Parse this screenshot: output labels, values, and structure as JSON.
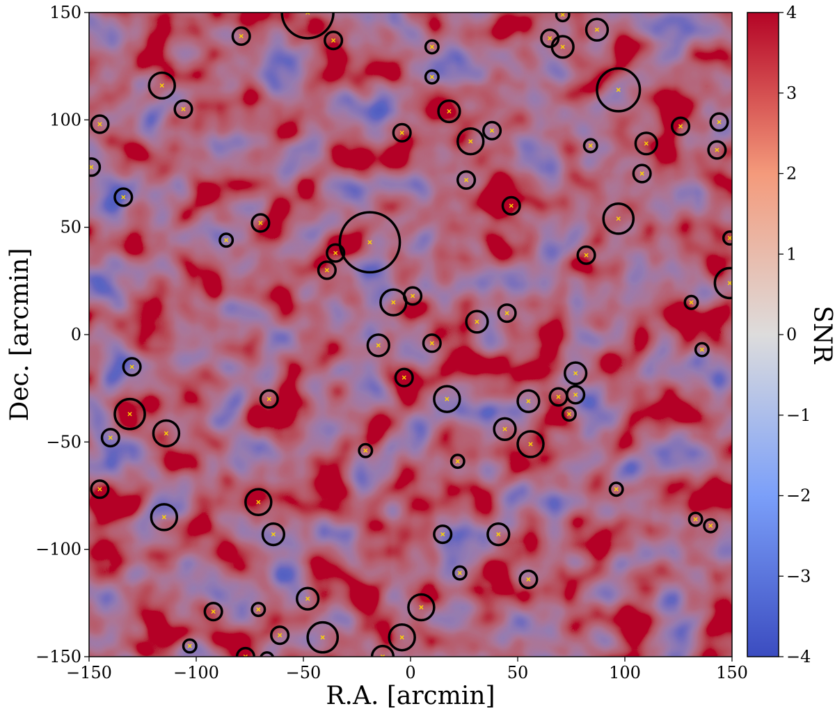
{
  "chart_data": {
    "type": "heatmap",
    "title": "",
    "xlabel": "R.A.  [arcmin]",
    "ylabel": "Dec.  [arcmin]",
    "xlim": [
      -150,
      150
    ],
    "ylim": [
      -150,
      150
    ],
    "x_ticks": [
      -150,
      -100,
      -50,
      0,
      50,
      100,
      150
    ],
    "y_ticks": [
      -150,
      -100,
      -50,
      0,
      50,
      100,
      150
    ],
    "x_tick_labels": [
      "−150",
      "−100",
      "−50",
      "0",
      "50",
      "100",
      "150"
    ],
    "y_tick_labels": [
      "−150",
      "−100",
      "−50",
      "0",
      "50",
      "100",
      "150"
    ],
    "colorbar": {
      "label": "SNR",
      "range": [
        -4,
        4
      ],
      "ticks": [
        -4,
        -3,
        -2,
        -1,
        0,
        1,
        2,
        3,
        4
      ],
      "tick_labels": [
        "−4",
        "−3",
        "−2",
        "−1",
        "0",
        "1",
        "2",
        "3",
        "4"
      ],
      "colormap": "coolwarm",
      "colors": [
        "#3b4cc0",
        "#7b9ff9",
        "#dddcdc",
        "#f49a7b",
        "#b40426"
      ]
    },
    "grid": false,
    "marker_color": "#ffd700",
    "circle_color": "#000000",
    "sources": [
      {
        "x": -48,
        "y": 150,
        "r": 12
      },
      {
        "x": -79,
        "y": 139,
        "r": 4
      },
      {
        "x": -36,
        "y": 137,
        "r": 4
      },
      {
        "x": 10,
        "y": 134,
        "r": 3
      },
      {
        "x": 71,
        "y": 149,
        "r": 3
      },
      {
        "x": 65,
        "y": 138,
        "r": 4
      },
      {
        "x": 71,
        "y": 134,
        "r": 5
      },
      {
        "x": 87,
        "y": 142,
        "r": 5
      },
      {
        "x": 10,
        "y": 120,
        "r": 3
      },
      {
        "x": -116,
        "y": 116,
        "r": 6
      },
      {
        "x": -106,
        "y": 105,
        "r": 4
      },
      {
        "x": 97,
        "y": 114,
        "r": 10
      },
      {
        "x": 18,
        "y": 104,
        "r": 5
      },
      {
        "x": -145,
        "y": 98,
        "r": 4
      },
      {
        "x": -4,
        "y": 94,
        "r": 4
      },
      {
        "x": 28,
        "y": 90,
        "r": 6
      },
      {
        "x": 38,
        "y": 95,
        "r": 4
      },
      {
        "x": 84,
        "y": 88,
        "r": 3
      },
      {
        "x": 110,
        "y": 89,
        "r": 5
      },
      {
        "x": 126,
        "y": 97,
        "r": 4
      },
      {
        "x": 144,
        "y": 99,
        "r": 4
      },
      {
        "x": 143,
        "y": 86,
        "r": 4
      },
      {
        "x": -149,
        "y": 78,
        "r": 4
      },
      {
        "x": 26,
        "y": 72,
        "r": 4
      },
      {
        "x": 108,
        "y": 75,
        "r": 4
      },
      {
        "x": -134,
        "y": 64,
        "r": 4
      },
      {
        "x": 47,
        "y": 60,
        "r": 4
      },
      {
        "x": -70,
        "y": 52,
        "r": 4
      },
      {
        "x": 97,
        "y": 54,
        "r": 7
      },
      {
        "x": -86,
        "y": 44,
        "r": 3
      },
      {
        "x": -19,
        "y": 43,
        "r": 14
      },
      {
        "x": 149,
        "y": 45,
        "r": 3
      },
      {
        "x": -35,
        "y": 38,
        "r": 4
      },
      {
        "x": 82,
        "y": 37,
        "r": 4
      },
      {
        "x": -39,
        "y": 30,
        "r": 4
      },
      {
        "x": 149,
        "y": 24,
        "r": 7
      },
      {
        "x": -8,
        "y": 15,
        "r": 6
      },
      {
        "x": 1,
        "y": 18,
        "r": 4
      },
      {
        "x": 131,
        "y": 15,
        "r": 3
      },
      {
        "x": 45,
        "y": 10,
        "r": 4
      },
      {
        "x": 31,
        "y": 6,
        "r": 5
      },
      {
        "x": -15,
        "y": -5,
        "r": 5
      },
      {
        "x": 10,
        "y": -4,
        "r": 4
      },
      {
        "x": 136,
        "y": -7,
        "r": 3
      },
      {
        "x": -130,
        "y": -15,
        "r": 4
      },
      {
        "x": -3,
        "y": -20,
        "r": 4
      },
      {
        "x": 77,
        "y": -18,
        "r": 5
      },
      {
        "x": -66,
        "y": -30,
        "r": 4
      },
      {
        "x": 17,
        "y": -30,
        "r": 6
      },
      {
        "x": 69,
        "y": -29,
        "r": 4
      },
      {
        "x": 77,
        "y": -28,
        "r": 4
      },
      {
        "x": 55,
        "y": -31,
        "r": 5
      },
      {
        "x": 74,
        "y": -37,
        "r": 3
      },
      {
        "x": -131,
        "y": -37,
        "r": 7
      },
      {
        "x": -114,
        "y": -46,
        "r": 6
      },
      {
        "x": -140,
        "y": -48,
        "r": 4
      },
      {
        "x": 44,
        "y": -44,
        "r": 5
      },
      {
        "x": 56,
        "y": -51,
        "r": 6
      },
      {
        "x": -21,
        "y": -54,
        "r": 3
      },
      {
        "x": 22,
        "y": -59,
        "r": 3
      },
      {
        "x": -145,
        "y": -72,
        "r": 4
      },
      {
        "x": 96,
        "y": -72,
        "r": 3
      },
      {
        "x": -71,
        "y": -78,
        "r": 6
      },
      {
        "x": -115,
        "y": -85,
        "r": 6
      },
      {
        "x": 133,
        "y": -86,
        "r": 3
      },
      {
        "x": 140,
        "y": -89,
        "r": 3
      },
      {
        "x": -64,
        "y": -93,
        "r": 5
      },
      {
        "x": 15,
        "y": -93,
        "r": 4
      },
      {
        "x": 41,
        "y": -93,
        "r": 5
      },
      {
        "x": 23,
        "y": -111,
        "r": 3
      },
      {
        "x": 55,
        "y": -114,
        "r": 4
      },
      {
        "x": -48,
        "y": -123,
        "r": 5
      },
      {
        "x": -92,
        "y": -129,
        "r": 4
      },
      {
        "x": -71,
        "y": -128,
        "r": 3
      },
      {
        "x": 5,
        "y": -127,
        "r": 6
      },
      {
        "x": -61,
        "y": -140,
        "r": 4
      },
      {
        "x": -41,
        "y": -141,
        "r": 7
      },
      {
        "x": -4,
        "y": -141,
        "r": 6
      },
      {
        "x": -103,
        "y": -145,
        "r": 3
      },
      {
        "x": -77,
        "y": -150,
        "r": 4
      },
      {
        "x": -67,
        "y": -151,
        "r": 3
      },
      {
        "x": -13,
        "y": -150,
        "r": 5
      }
    ]
  }
}
